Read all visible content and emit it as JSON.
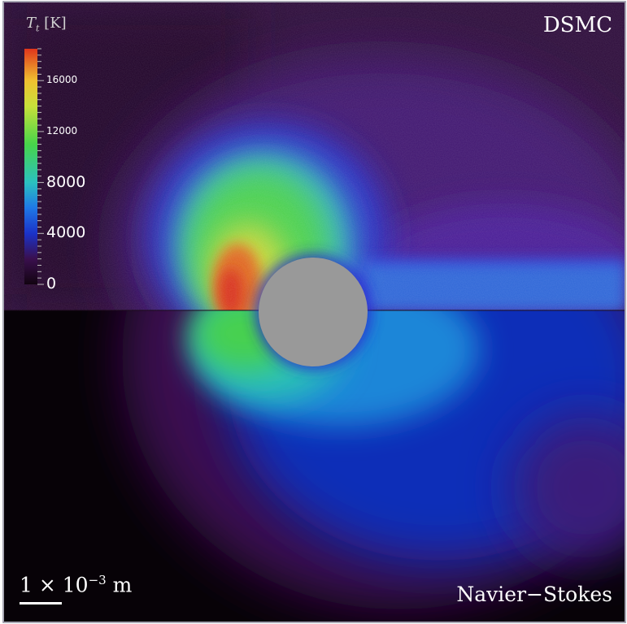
{
  "labels": {
    "top_method": "DSMC",
    "bottom_method": "Navier−Stokes",
    "scale_prefix": "1 × 10",
    "scale_exponent": "−3",
    "scale_unit": " m"
  },
  "colorbar": {
    "symbol": "T",
    "subscript": "t",
    "unit": "[K]",
    "min": 0,
    "max": 18500,
    "ticks": [
      "0",
      "4000",
      "8000",
      "12000",
      "16000"
    ],
    "stops": [
      {
        "v": 0,
        "c": "#120410"
      },
      {
        "v": 2000,
        "c": "#3a0f4e"
      },
      {
        "v": 4000,
        "c": "#1b32c8"
      },
      {
        "v": 6000,
        "c": "#1f78e6"
      },
      {
        "v": 8000,
        "c": "#2bc0c0"
      },
      {
        "v": 11000,
        "c": "#47d44a"
      },
      {
        "v": 14000,
        "c": "#c8e03a"
      },
      {
        "v": 16000,
        "c": "#f0c030"
      },
      {
        "v": 18500,
        "c": "#e0351c"
      }
    ]
  },
  "colors": {
    "body": "#999999",
    "background_dark": "#0a0308"
  }
}
